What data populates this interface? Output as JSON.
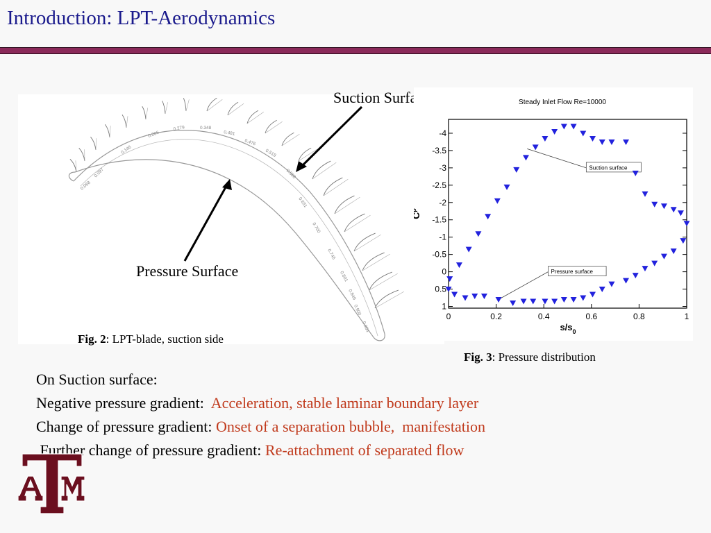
{
  "title": "Introduction: LPT-Aerodynamics",
  "blade_figure": {
    "suction_label": "Suction Surface",
    "pressure_label": "Pressure Surface",
    "caption_bold": "Fig. 2",
    "caption_text": ": LPT-blade, suction side",
    "station_labels": [
      "0.068",
      "0.097",
      "0.146",
      "0.206",
      "0.279",
      "0.348",
      "0.481",
      "0.476",
      "0.518",
      "0.588",
      "0.631",
      "0.700",
      "0.745",
      "0.801",
      "0.849",
      "0.900",
      "0.954"
    ]
  },
  "pressure_figure": {
    "caption_bold": "Fig. 3",
    "caption_text": ": Pressure distribution",
    "colors": {
      "marker": "#2222dd"
    }
  },
  "chart_data": {
    "type": "scatter",
    "title": "Steady Inlet Flow    Re=10000",
    "xlabel": "s/s0",
    "ylabel": "Cp",
    "xlim": [
      0,
      1
    ],
    "ylim": [
      -4.4,
      1.05
    ],
    "y_reversed": true,
    "xticks": [
      0,
      0.2,
      0.4,
      0.6,
      0.8,
      1
    ],
    "xtick_labels": [
      "0",
      "0.2",
      "0.4",
      "0.6",
      "0.8",
      "1"
    ],
    "yticks": [
      -4,
      -3.5,
      -3,
      -2.5,
      -2,
      -1.5,
      -1,
      -0.5,
      0,
      0.5,
      1
    ],
    "ytick_labels": [
      "-4",
      "-3.5",
      "-3",
      "-2.5",
      "-2",
      "-1.5",
      "-1",
      "-0.5",
      "0",
      "0.5",
      "1"
    ],
    "annotations": [
      {
        "text": "Suction surface",
        "x": 0.59,
        "y": -3.0,
        "target_x": 0.33,
        "target_y": -3.55
      },
      {
        "text": "Pressure surface",
        "x": 0.43,
        "y": 0.0,
        "target_x": 0.21,
        "target_y": 0.8
      }
    ],
    "series": [
      {
        "name": "Suction surface",
        "x": [
          0.005,
          0.045,
          0.085,
          0.125,
          0.165,
          0.205,
          0.245,
          0.285,
          0.325,
          0.365,
          0.405,
          0.445,
          0.485,
          0.525,
          0.565,
          0.605,
          0.645,
          0.685,
          0.745,
          0.785,
          0.825,
          0.865,
          0.905,
          0.945,
          0.975,
          1.0
        ],
        "y": [
          0.2,
          -0.2,
          -0.65,
          -1.1,
          -1.6,
          -2.05,
          -2.45,
          -2.95,
          -3.3,
          -3.6,
          -3.85,
          -4.05,
          -4.2,
          -4.2,
          -4.0,
          -3.85,
          -3.75,
          -3.75,
          -3.75,
          -2.85,
          -2.25,
          -1.95,
          -1.9,
          -1.8,
          -1.7,
          -1.4
        ]
      },
      {
        "name": "Pressure surface",
        "x": [
          0.0,
          0.025,
          0.07,
          0.11,
          0.15,
          0.21,
          0.27,
          0.315,
          0.355,
          0.405,
          0.445,
          0.485,
          0.525,
          0.565,
          0.605,
          0.645,
          0.685,
          0.745,
          0.785,
          0.825,
          0.865,
          0.905,
          0.945,
          0.985
        ],
        "y": [
          0.5,
          0.65,
          0.75,
          0.7,
          0.7,
          0.8,
          0.9,
          0.85,
          0.85,
          0.85,
          0.85,
          0.8,
          0.8,
          0.75,
          0.65,
          0.5,
          0.35,
          0.25,
          0.1,
          -0.1,
          -0.25,
          -0.45,
          -0.6,
          -0.9
        ]
      }
    ]
  },
  "body": {
    "line1": "On Suction surface:",
    "line2_black": "Negative pressure gradient:  ",
    "line2_red": "Acceleration, stable laminar boundary layer",
    "line3_black": "Change of pressure gradient: ",
    "line3_red": "Onset of a separation bubble,  manifestation",
    "line4_black": " Further change of pressure gradient: ",
    "line4_red": "Re-attachment of separated flow"
  },
  "logo": {
    "text": "ATM",
    "color": "#6b0f1f"
  }
}
